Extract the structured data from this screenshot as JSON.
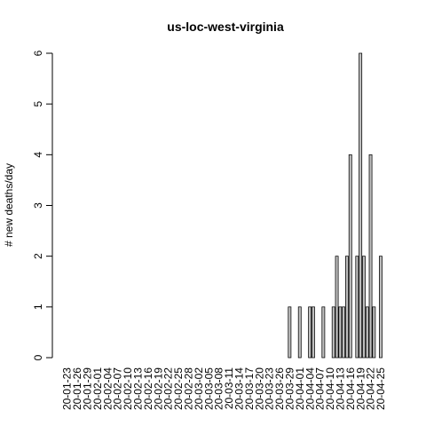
{
  "chart_data": {
    "type": "bar",
    "title": "us-loc-west-virginia",
    "xlabel": "",
    "ylabel": "# new deaths/day",
    "ylim": [
      0,
      6
    ],
    "y_ticks": [
      0,
      1,
      2,
      3,
      4,
      5,
      6
    ],
    "grid": false,
    "legend": "none",
    "colors": {
      "bar_fill": "#bebebe",
      "bar_stroke": "#000000",
      "axis": "#000000",
      "text": "#000000",
      "background": "#ffffff"
    },
    "x_tick_labels": [
      "20-01-23",
      "20-01-26",
      "20-01-29",
      "20-02-01",
      "20-02-04",
      "20-02-07",
      "20-02-10",
      "20-02-13",
      "20-02-16",
      "20-02-19",
      "20-02-22",
      "20-02-25",
      "20-02-28",
      "20-03-02",
      "20-03-05",
      "20-03-08",
      "20-03-11",
      "20-03-14",
      "20-03-17",
      "20-03-20",
      "20-03-23",
      "20-03-26",
      "20-03-29",
      "20-04-01",
      "20-04-04",
      "20-04-07",
      "20-04-10",
      "20-04-13",
      "20-04-16",
      "20-04-19",
      "20-04-22",
      "20-04-25"
    ],
    "categories": [
      "20-01-23",
      "20-01-24",
      "20-01-25",
      "20-01-26",
      "20-01-27",
      "20-01-28",
      "20-01-29",
      "20-01-30",
      "20-01-31",
      "20-02-01",
      "20-02-02",
      "20-02-03",
      "20-02-04",
      "20-02-05",
      "20-02-06",
      "20-02-07",
      "20-02-08",
      "20-02-09",
      "20-02-10",
      "20-02-11",
      "20-02-12",
      "20-02-13",
      "20-02-14",
      "20-02-15",
      "20-02-16",
      "20-02-17",
      "20-02-18",
      "20-02-19",
      "20-02-20",
      "20-02-21",
      "20-02-22",
      "20-02-23",
      "20-02-24",
      "20-02-25",
      "20-02-26",
      "20-02-27",
      "20-02-28",
      "20-02-29",
      "20-03-01",
      "20-03-02",
      "20-03-03",
      "20-03-04",
      "20-03-05",
      "20-03-06",
      "20-03-07",
      "20-03-08",
      "20-03-09",
      "20-03-10",
      "20-03-11",
      "20-03-12",
      "20-03-13",
      "20-03-14",
      "20-03-15",
      "20-03-16",
      "20-03-17",
      "20-03-18",
      "20-03-19",
      "20-03-20",
      "20-03-21",
      "20-03-22",
      "20-03-23",
      "20-03-24",
      "20-03-25",
      "20-03-26",
      "20-03-27",
      "20-03-28",
      "20-03-29",
      "20-03-30",
      "20-03-31",
      "20-04-01",
      "20-04-02",
      "20-04-03",
      "20-04-04",
      "20-04-05",
      "20-04-06",
      "20-04-07",
      "20-04-08",
      "20-04-09",
      "20-04-10",
      "20-04-11",
      "20-04-12",
      "20-04-13",
      "20-04-14",
      "20-04-15",
      "20-04-16",
      "20-04-17",
      "20-04-18",
      "20-04-19",
      "20-04-20",
      "20-04-21",
      "20-04-22",
      "20-04-23",
      "20-04-24",
      "20-04-25",
      "20-04-26"
    ],
    "values": [
      0,
      0,
      0,
      0,
      0,
      0,
      0,
      0,
      0,
      0,
      0,
      0,
      0,
      0,
      0,
      0,
      0,
      0,
      0,
      0,
      0,
      0,
      0,
      0,
      0,
      0,
      0,
      0,
      0,
      0,
      0,
      0,
      0,
      0,
      0,
      0,
      0,
      0,
      0,
      0,
      0,
      0,
      0,
      0,
      0,
      0,
      0,
      0,
      0,
      0,
      0,
      0,
      0,
      0,
      0,
      0,
      0,
      0,
      0,
      0,
      0,
      0,
      0,
      0,
      0,
      0,
      1,
      0,
      0,
      1,
      0,
      0,
      1,
      1,
      0,
      0,
      1,
      0,
      0,
      1,
      2,
      1,
      1,
      2,
      4,
      0,
      2,
      6,
      2,
      1,
      4,
      1,
      0,
      2,
      0
    ]
  }
}
